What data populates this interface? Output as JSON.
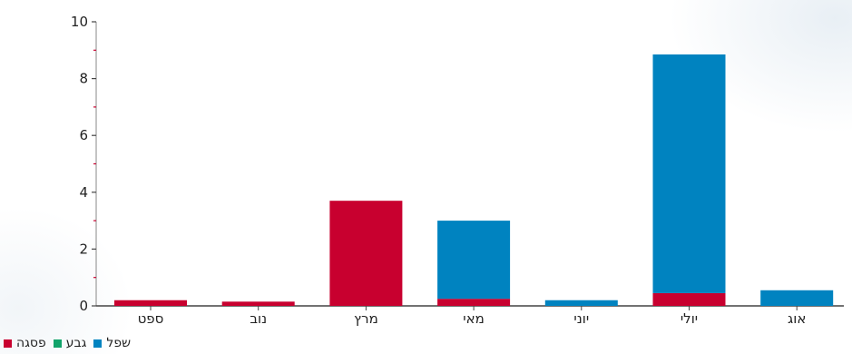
{
  "chart_data": {
    "type": "bar",
    "stacked": true,
    "categories": [
      "ספט",
      "נוב",
      "מרץ",
      "מאי",
      "יוני",
      "יולי",
      "אוג"
    ],
    "series": [
      {
        "name": "פסגה",
        "color": "#c8002f",
        "values": [
          0.2,
          0.15,
          3.7,
          0.25,
          0.0,
          0.45,
          0.0
        ]
      },
      {
        "name": "גבע",
        "color": "#11a36a",
        "values": [
          0,
          0,
          0,
          0,
          0,
          0,
          0
        ]
      },
      {
        "name": "שפל",
        "color": "#0083c0",
        "values": [
          0.0,
          0.0,
          0.0,
          2.75,
          0.2,
          8.4,
          0.55
        ]
      }
    ],
    "yticks": [
      "0",
      "2",
      "4",
      "6",
      "8",
      "10"
    ],
    "ylim": [
      0,
      10
    ],
    "grid": false,
    "legend_position": "bottom-left"
  },
  "legend": {
    "items": [
      {
        "label": "פסגה",
        "color": "#c8002f"
      },
      {
        "label": "גבע",
        "color": "#11a36a"
      },
      {
        "label": "שפל",
        "color": "#0083c0"
      }
    ]
  }
}
